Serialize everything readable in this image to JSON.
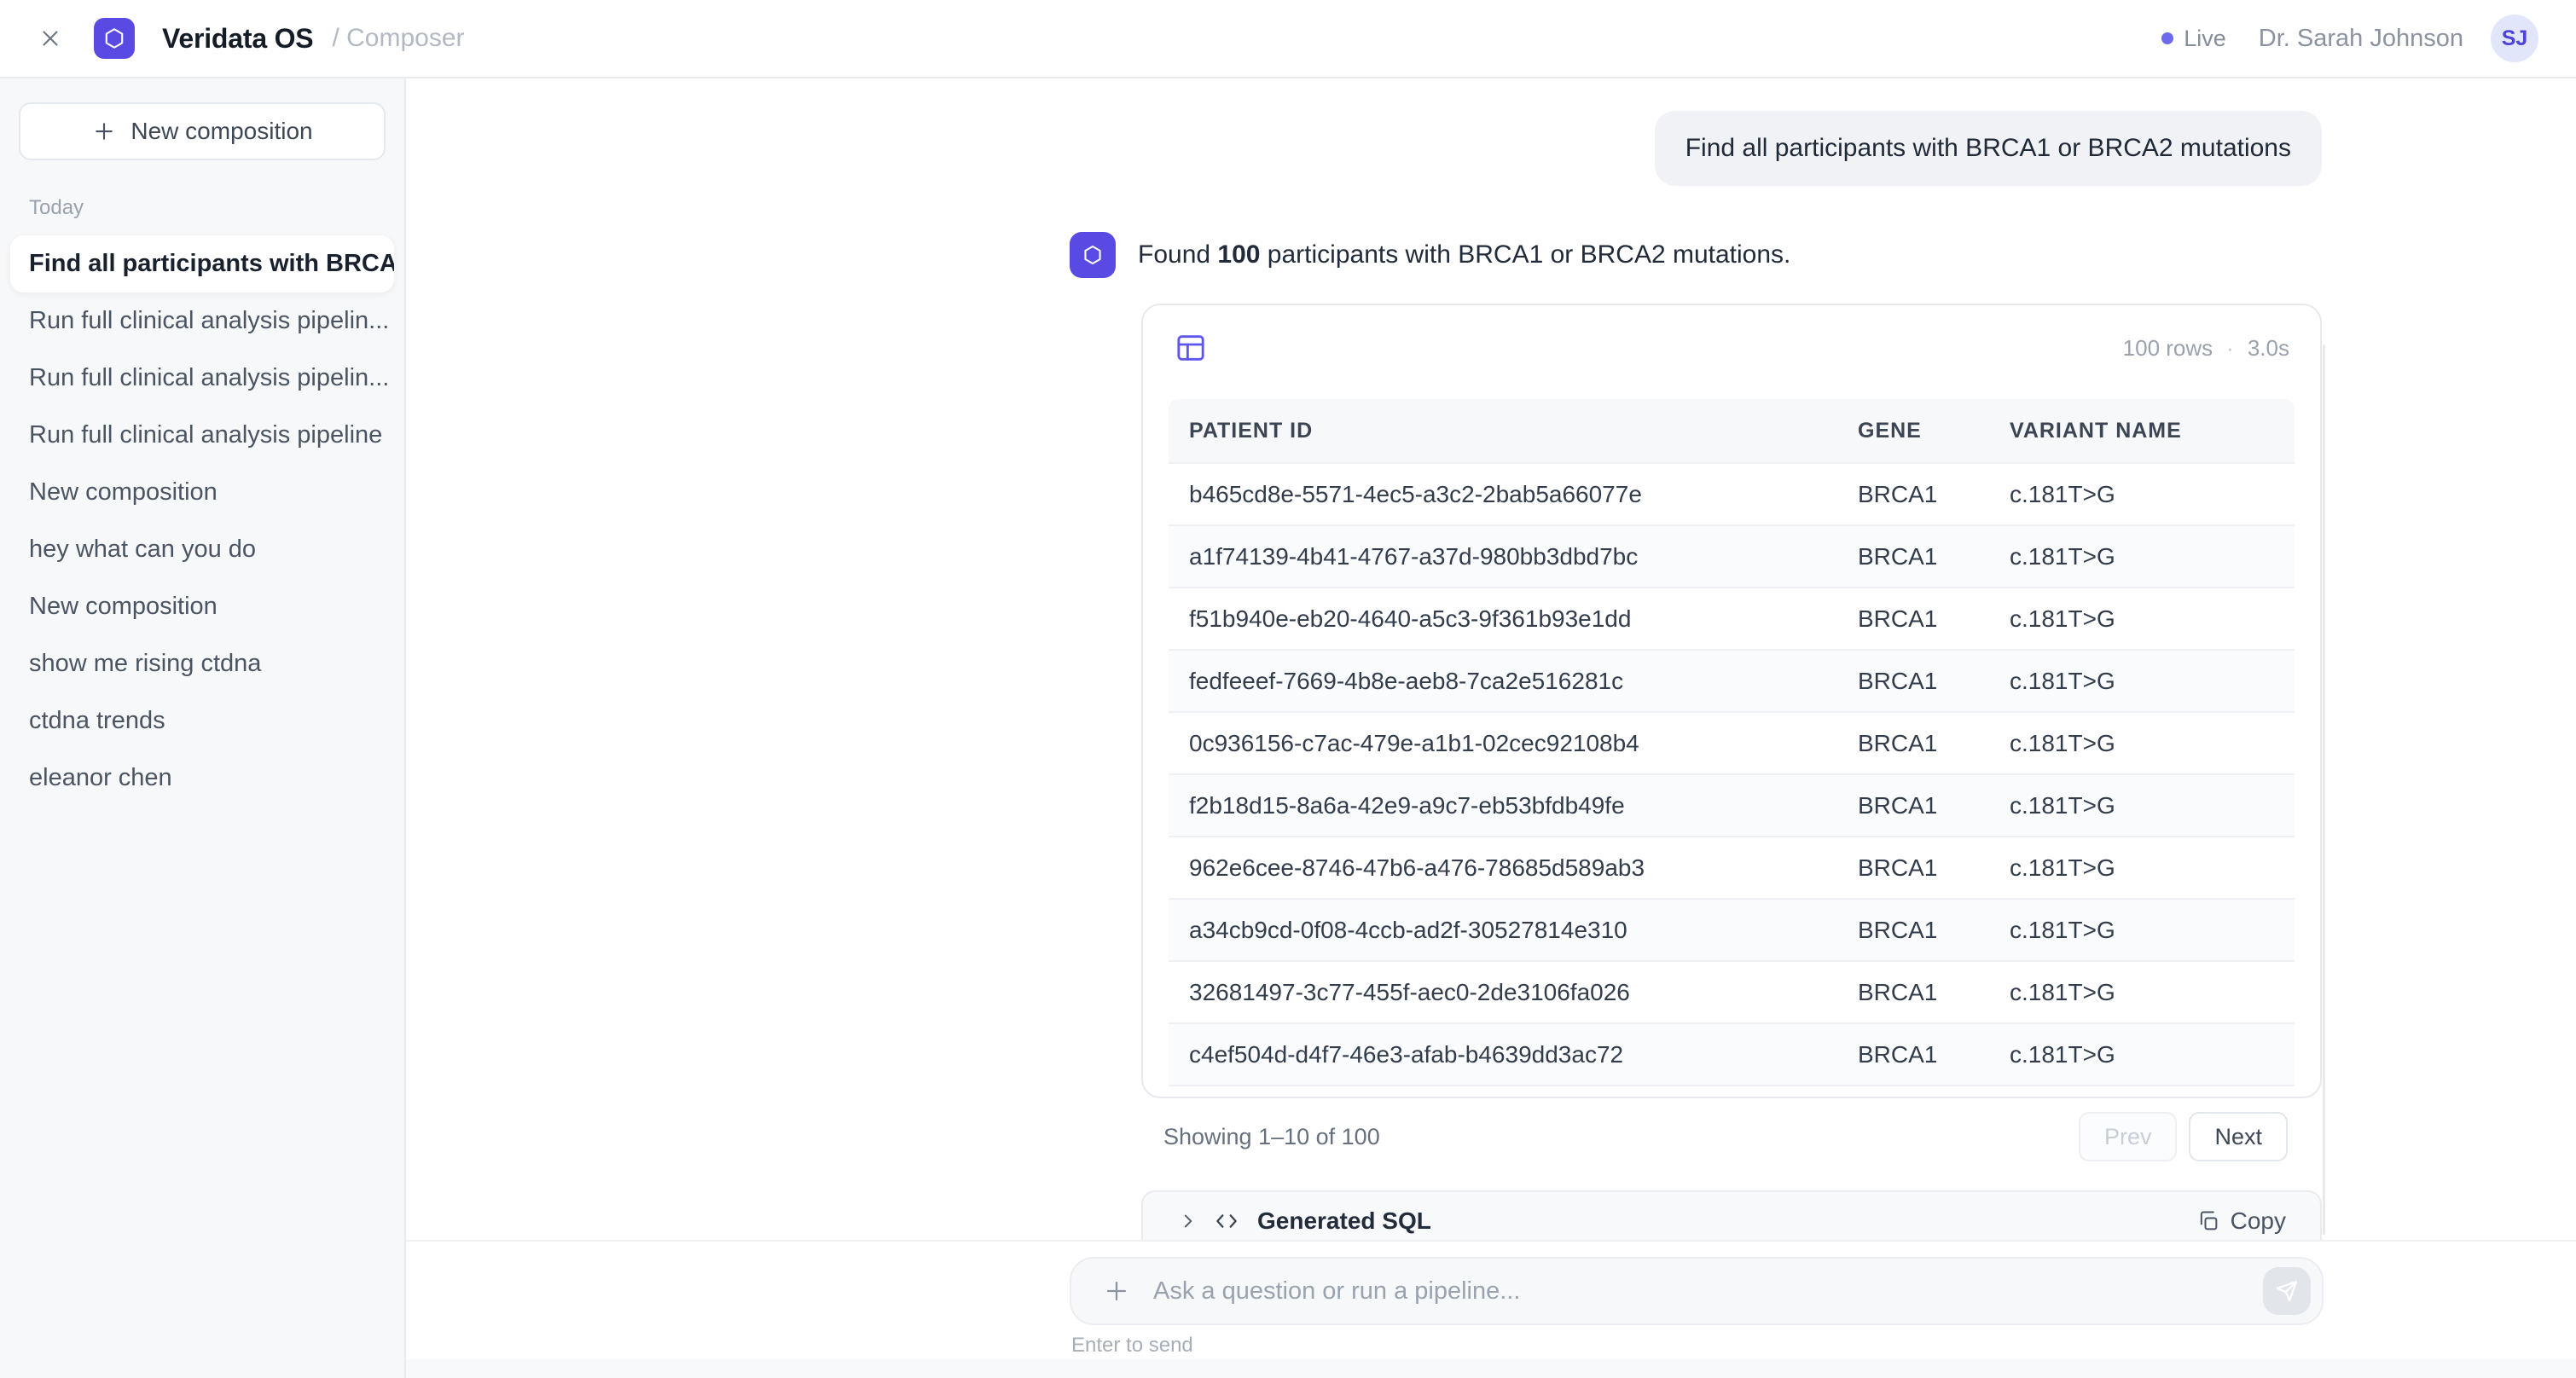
{
  "topbar": {
    "app_name": "Veridata OS",
    "breadcrumb": "/ Composer",
    "status": "Live",
    "user_name": "Dr. Sarah Johnson",
    "avatar_initials": "SJ"
  },
  "sidebar": {
    "new_composition_label": "New composition",
    "section_label": "Today",
    "items": [
      {
        "label": "Find all participants with BRCA...",
        "active": true
      },
      {
        "label": "Run full clinical analysis pipelin...",
        "active": false
      },
      {
        "label": "Run full clinical analysis pipelin...",
        "active": false
      },
      {
        "label": "Run full clinical analysis pipeline",
        "active": false
      },
      {
        "label": "New composition",
        "active": false
      },
      {
        "label": "hey what can you do",
        "active": false
      },
      {
        "label": "New composition",
        "active": false
      },
      {
        "label": "show me rising ctdna",
        "active": false
      },
      {
        "label": "ctdna trends",
        "active": false
      },
      {
        "label": "eleanor chen",
        "active": false
      }
    ]
  },
  "chat": {
    "user_message": "Find all participants with BRCA1 or BRCA2 mutations",
    "assistant_prefix": "Found ",
    "assistant_count": "100",
    "assistant_suffix": " participants with BRCA1 or BRCA2 mutations.",
    "result_card": {
      "meta_rows": "100 rows",
      "meta_sep": "·",
      "meta_time": "3.0s",
      "columns": [
        "PATIENT ID",
        "GENE",
        "VARIANT NAME"
      ],
      "rows": [
        [
          "b465cd8e-5571-4ec5-a3c2-2bab5a66077e",
          "BRCA1",
          "c.181T>G"
        ],
        [
          "a1f74139-4b41-4767-a37d-980bb3dbd7bc",
          "BRCA1",
          "c.181T>G"
        ],
        [
          "f51b940e-eb20-4640-a5c3-9f361b93e1dd",
          "BRCA1",
          "c.181T>G"
        ],
        [
          "fedfeeef-7669-4b8e-aeb8-7ca2e516281c",
          "BRCA1",
          "c.181T>G"
        ],
        [
          "0c936156-c7ac-479e-a1b1-02cec92108b4",
          "BRCA1",
          "c.181T>G"
        ],
        [
          "f2b18d15-8a6a-42e9-a9c7-eb53bfdb49fe",
          "BRCA1",
          "c.181T>G"
        ],
        [
          "962e6cee-8746-47b6-a476-78685d589ab3",
          "BRCA1",
          "c.181T>G"
        ],
        [
          "a34cb9cd-0f08-4ccb-ad2f-30527814e310",
          "BRCA1",
          "c.181T>G"
        ],
        [
          "32681497-3c77-455f-aec0-2de3106fa026",
          "BRCA1",
          "c.181T>G"
        ],
        [
          "c4ef504d-d4f7-46e3-afab-b4639dd3ac72",
          "BRCA1",
          "c.181T>G"
        ]
      ]
    },
    "pagination": {
      "summary": "Showing 1–10 of 100",
      "prev_label": "Prev",
      "next_label": "Next"
    },
    "sql": {
      "label": "Generated SQL",
      "copy_label": "Copy"
    }
  },
  "composer": {
    "placeholder": "Ask a question or run a pipeline...",
    "hint": "Enter to send"
  },
  "colors": {
    "brand_accent": "#584ae2",
    "live_dot": "#6d6af0",
    "avatar_bg": "#e2e6fb",
    "avatar_text": "#4d43d6",
    "sidebar_bg": "#f7f8f9"
  }
}
